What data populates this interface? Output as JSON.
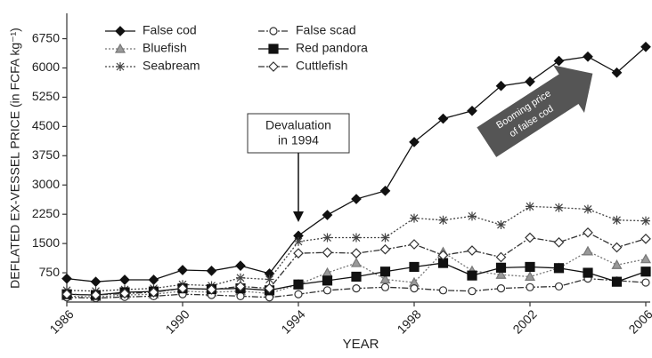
{
  "chart_data": {
    "type": "line",
    "y_label": "DEFLATED EX-VESSEL PRICE (in FCFA kg⁻¹)",
    "x_label": "YEAR",
    "x": [
      1986,
      1987,
      1988,
      1989,
      1990,
      1991,
      1992,
      1993,
      1994,
      1995,
      1996,
      1997,
      1998,
      1999,
      2000,
      2001,
      2002,
      2003,
      2004,
      2005,
      2006
    ],
    "series": [
      {
        "name": "False cod",
        "color": "#111111",
        "marker": "diamond",
        "marker_fill": "#111111",
        "dash": "solid",
        "values": [
          600,
          520,
          570,
          570,
          820,
          800,
          930,
          730,
          1700,
          2230,
          2640,
          2850,
          4100,
          4700,
          4900,
          5540,
          5650,
          6180,
          6290,
          5880,
          6540
        ]
      },
      {
        "name": "Bluefish",
        "color": "#777777",
        "marker": "triangle",
        "marker_fill": "#999999",
        "dash": "dotted",
        "values": [
          150,
          130,
          180,
          200,
          280,
          250,
          280,
          220,
          450,
          750,
          1000,
          580,
          500,
          1280,
          800,
          700,
          650,
          870,
          1300,
          950,
          1100
        ]
      },
      {
        "name": "Seabream",
        "color": "#444444",
        "marker": "star",
        "marker_fill": "#444444",
        "dash": "dotted",
        "values": [
          300,
          280,
          320,
          350,
          450,
          420,
          620,
          580,
          1550,
          1650,
          1650,
          1650,
          2150,
          2100,
          2200,
          1980,
          2450,
          2420,
          2380,
          2100,
          2080
        ]
      },
      {
        "name": "False scad",
        "color": "#333333",
        "marker": "circle",
        "marker_fill": "#ffffff",
        "dash": "dashdot",
        "values": [
          120,
          100,
          130,
          150,
          200,
          180,
          150,
          120,
          200,
          300,
          350,
          380,
          350,
          300,
          280,
          350,
          380,
          400,
          600,
          550,
          500
        ]
      },
      {
        "name": "Red pandora",
        "color": "#111111",
        "marker": "square",
        "marker_fill": "#111111",
        "dash": "solid",
        "values": [
          200,
          180,
          250,
          270,
          350,
          330,
          350,
          300,
          450,
          550,
          650,
          780,
          900,
          1000,
          680,
          880,
          900,
          870,
          750,
          520,
          780
        ]
      },
      {
        "name": "Cuttlefish",
        "color": "#333333",
        "marker": "diamond",
        "marker_fill": "#ffffff",
        "dash": "dashdot",
        "values": [
          200,
          180,
          220,
          250,
          350,
          320,
          400,
          350,
          1250,
          1270,
          1250,
          1350,
          1480,
          1200,
          1320,
          1150,
          1650,
          1530,
          1780,
          1400,
          1620
        ]
      }
    ],
    "xlim": [
      1986,
      2006
    ],
    "xticks": [
      1986,
      1990,
      1994,
      1998,
      2002,
      2006
    ],
    "ylim": [
      0,
      7400
    ],
    "yticks": [
      750,
      1500,
      2250,
      3000,
      3750,
      4500,
      5250,
      6000,
      6750
    ],
    "annotations": [
      [
        "Devaluation",
        "in 1994"
      ],
      [
        "Booming price",
        "of false cod"
      ]
    ]
  }
}
